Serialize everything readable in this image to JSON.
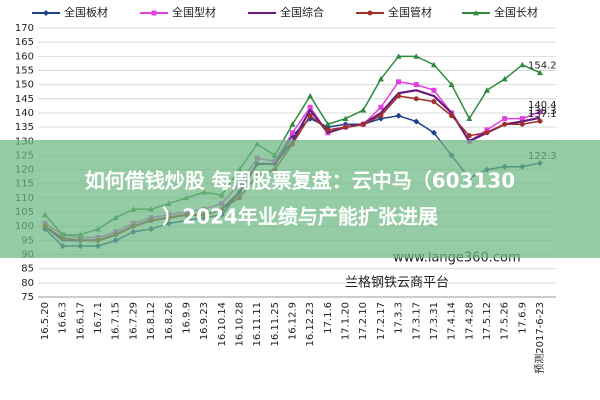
{
  "chart_data": {
    "type": "line",
    "categories": [
      "16.5.20",
      "16.6.3",
      "16.6.17",
      "16.7.1",
      "16.7.15",
      "16.7.29",
      "16.8.12",
      "16.8.26",
      "16.9.9",
      "16.9.23",
      "16.10.14",
      "16.10.28",
      "16.11.11",
      "16.11.25",
      "16.12.9",
      "16.12.23",
      "17.1.6",
      "17.1.20",
      "17.2.10",
      "17.2.17",
      "17.3.3",
      "17.3.17",
      "17.3.31",
      "17.4.14",
      "17.4.28",
      "17.5.12",
      "17.5.26",
      "17.6.9",
      "预测2017-6-23"
    ],
    "series": [
      {
        "name": "全国板材",
        "color": "#1f3f8f",
        "marker": "diamond",
        "values": [
          99,
          93,
          93,
          93,
          95,
          98,
          99,
          101,
          102,
          103,
          104,
          112,
          122,
          122,
          132,
          138,
          135,
          136,
          136,
          138,
          139,
          137,
          133,
          125,
          117,
          120,
          121,
          121,
          122.3
        ]
      },
      {
        "name": "全国型材",
        "color": "#e040e0",
        "marker": "square",
        "values": [
          101,
          97,
          96,
          96,
          98,
          101,
          103,
          104,
          105,
          106,
          108,
          115,
          124,
          123,
          133,
          142,
          133,
          135,
          136,
          142,
          151,
          150,
          148,
          140,
          130,
          134,
          138,
          138,
          140.4
        ]
      },
      {
        "name": "全国综合",
        "color": "#6a1b7a",
        "marker": "none",
        "values": [
          100,
          95,
          95,
          95,
          97,
          100,
          102,
          103,
          104,
          104,
          106,
          112,
          122,
          122,
          130,
          141,
          133,
          135,
          136,
          140,
          147,
          148,
          146,
          140,
          130,
          133,
          136,
          137,
          138.3
        ]
      },
      {
        "name": "全国管材",
        "color": "#a0302a",
        "marker": "circle",
        "values": [
          100,
          96,
          95,
          95,
          97,
          100,
          102,
          103,
          104,
          104,
          106,
          110,
          118,
          120,
          129,
          139,
          134,
          135,
          136,
          139,
          146,
          145,
          144,
          139,
          132,
          133,
          136,
          136,
          137.1
        ]
      },
      {
        "name": "全国长材",
        "color": "#2e8b3e",
        "marker": "triangle",
        "values": [
          104,
          97,
          97,
          99,
          103,
          106,
          106,
          108,
          110,
          112,
          111,
          120,
          129,
          125,
          136,
          146,
          136,
          138,
          141,
          152,
          160,
          160,
          157,
          150,
          138,
          148,
          152,
          157,
          154.2
        ]
      }
    ],
    "ylim": [
      75,
      170
    ],
    "yticks": [
      75,
      80,
      85,
      90,
      95,
      100,
      105,
      110,
      115,
      120,
      125,
      130,
      135,
      140,
      145,
      150,
      155,
      160,
      165,
      170
    ],
    "grid": true
  },
  "watermarks": [
    "www.lange360.com",
    "兰格钢铁云商平台"
  ],
  "banner": [
    "如何借钱炒股 每周股票复盘：云中马（603130",
    "）2024年业绩与产能扩张进展"
  ]
}
